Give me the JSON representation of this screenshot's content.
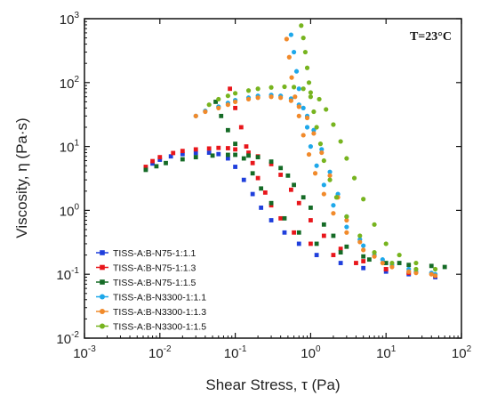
{
  "chart_data": {
    "type": "scatter",
    "title": "",
    "annotation": "T=23°C",
    "xlabel": "Shear Stress, τ (Pa)",
    "ylabel": "Viscosity, η (Pa·s)",
    "xscale": "log",
    "yscale": "log",
    "xlim": [
      0.001,
      100
    ],
    "ylim": [
      0.01,
      1000
    ],
    "x_ticks": [
      {
        "value": 0.001,
        "base": "10",
        "exp": "-3"
      },
      {
        "value": 0.01,
        "base": "10",
        "exp": "-2"
      },
      {
        "value": 0.1,
        "base": "10",
        "exp": "-1"
      },
      {
        "value": 1,
        "base": "10",
        "exp": "0"
      },
      {
        "value": 10,
        "base": "10",
        "exp": "1"
      },
      {
        "value": 100,
        "base": "10",
        "exp": "2"
      }
    ],
    "y_ticks": [
      {
        "value": 0.01,
        "base": "10",
        "exp": "-2"
      },
      {
        "value": 0.1,
        "base": "10",
        "exp": "-1"
      },
      {
        "value": 1,
        "base": "10",
        "exp": "0"
      },
      {
        "value": 10,
        "base": "10",
        "exp": "1"
      },
      {
        "value": 100,
        "base": "10",
        "exp": "2"
      },
      {
        "value": 1000,
        "base": "10",
        "exp": "3"
      }
    ],
    "grid": false,
    "legend_position": "bottom-left",
    "series": [
      {
        "name": "TISS-A:B-N75-1:1.1",
        "color": "#1f3fdc",
        "marker": "square",
        "points": [
          [
            0.0065,
            4.5
          ],
          [
            0.008,
            5.4
          ],
          [
            0.01,
            6.2
          ],
          [
            0.014,
            7.0
          ],
          [
            0.02,
            7.6
          ],
          [
            0.03,
            7.9
          ],
          [
            0.045,
            8.0
          ],
          [
            0.06,
            7.6
          ],
          [
            0.08,
            6.5
          ],
          [
            0.1,
            4.8
          ],
          [
            0.13,
            3.0
          ],
          [
            0.17,
            1.8
          ],
          [
            0.22,
            1.1
          ],
          [
            0.3,
            0.7
          ],
          [
            0.45,
            0.45
          ],
          [
            0.7,
            0.3
          ],
          [
            1.2,
            0.2
          ],
          [
            2.5,
            0.15
          ],
          [
            5,
            0.125
          ],
          [
            10,
            0.11
          ],
          [
            20,
            0.1
          ],
          [
            45,
            0.09
          ]
        ]
      },
      {
        "name": "TISS-A:B-N75-1:1.3",
        "color": "#e8161b",
        "marker": "square",
        "points": [
          [
            0.0065,
            4.8
          ],
          [
            0.008,
            5.9
          ],
          [
            0.01,
            6.8
          ],
          [
            0.015,
            7.9
          ],
          [
            0.02,
            8.5
          ],
          [
            0.03,
            9.0
          ],
          [
            0.045,
            9.3
          ],
          [
            0.06,
            9.5
          ],
          [
            0.08,
            9.4
          ],
          [
            0.1,
            9.0
          ],
          [
            0.15,
            8.0
          ],
          [
            0.2,
            7.0
          ],
          [
            0.3,
            5.3
          ],
          [
            0.4,
            3.6
          ],
          [
            0.55,
            2.1
          ],
          [
            0.7,
            1.3
          ],
          [
            1.0,
            0.7
          ],
          [
            1.5,
            0.4
          ],
          [
            2.5,
            0.25
          ],
          [
            5,
            0.16
          ],
          [
            10,
            0.12
          ],
          [
            20,
            0.105
          ],
          [
            45,
            0.095
          ],
          [
            0.085,
            80
          ],
          [
            0.1,
            40
          ],
          [
            0.12,
            20
          ],
          [
            0.14,
            10
          ],
          [
            0.17,
            5.5
          ],
          [
            0.2,
            3.2
          ],
          [
            0.25,
            1.9
          ],
          [
            0.3,
            1.2
          ],
          [
            0.4,
            0.75
          ],
          [
            0.6,
            0.45
          ],
          [
            1.0,
            0.3
          ],
          [
            2,
            0.2
          ],
          [
            4,
            0.15
          ],
          [
            10,
            0.12
          ]
        ]
      },
      {
        "name": "TISS-A:B-N75-1:1.5",
        "color": "#156b26",
        "marker": "square",
        "points": [
          [
            0.0065,
            4.3
          ],
          [
            0.009,
            4.9
          ],
          [
            0.012,
            5.5
          ],
          [
            0.02,
            6.3
          ],
          [
            0.03,
            6.8
          ],
          [
            0.05,
            7.2
          ],
          [
            0.08,
            7.4
          ],
          [
            0.1,
            7.4
          ],
          [
            0.15,
            7.2
          ],
          [
            0.2,
            6.8
          ],
          [
            0.3,
            5.8
          ],
          [
            0.4,
            4.6
          ],
          [
            0.5,
            3.5
          ],
          [
            0.6,
            2.5
          ],
          [
            0.8,
            1.6
          ],
          [
            1.0,
            1.1
          ],
          [
            1.5,
            0.6
          ],
          [
            2,
            0.4
          ],
          [
            3,
            0.27
          ],
          [
            5,
            0.19
          ],
          [
            10,
            0.15
          ],
          [
            20,
            0.14
          ],
          [
            60,
            0.13
          ],
          [
            0.055,
            50
          ],
          [
            0.065,
            30
          ],
          [
            0.08,
            18
          ],
          [
            0.1,
            11
          ],
          [
            0.13,
            6.5
          ],
          [
            0.17,
            3.8
          ],
          [
            0.22,
            2.2
          ],
          [
            0.3,
            1.3
          ],
          [
            0.45,
            0.75
          ],
          [
            0.7,
            0.45
          ],
          [
            1.2,
            0.3
          ],
          [
            2.5,
            0.22
          ],
          [
            6,
            0.17
          ],
          [
            15,
            0.15
          ],
          [
            40,
            0.135
          ]
        ]
      },
      {
        "name": "TISS-A:B-N3300-1:1.1",
        "color": "#1ea8ea",
        "marker": "circle",
        "points": [
          [
            0.03,
            30
          ],
          [
            0.04,
            36
          ],
          [
            0.06,
            42
          ],
          [
            0.08,
            48
          ],
          [
            0.1,
            53
          ],
          [
            0.15,
            58
          ],
          [
            0.2,
            62
          ],
          [
            0.3,
            64
          ],
          [
            0.4,
            62
          ],
          [
            0.55,
            56
          ],
          [
            0.7,
            45
          ],
          [
            0.9,
            30
          ],
          [
            1.1,
            18
          ],
          [
            1.4,
            9
          ],
          [
            1.8,
            4.0
          ],
          [
            2.3,
            1.8
          ],
          [
            3,
            0.8
          ],
          [
            4.5,
            0.35
          ],
          [
            7,
            0.2
          ],
          [
            12,
            0.14
          ],
          [
            25,
            0.11
          ],
          [
            45,
            0.1
          ],
          [
            0.55,
            560
          ],
          [
            0.6,
            300
          ],
          [
            0.65,
            150
          ],
          [
            0.7,
            80
          ],
          [
            0.8,
            40
          ],
          [
            0.9,
            20
          ],
          [
            1.0,
            10
          ],
          [
            1.2,
            5
          ],
          [
            1.5,
            2.5
          ],
          [
            2,
            1.2
          ],
          [
            3,
            0.55
          ],
          [
            5,
            0.28
          ],
          [
            9,
            0.17
          ],
          [
            20,
            0.12
          ],
          [
            40,
            0.105
          ]
        ]
      },
      {
        "name": "TISS-A:B-N3300-1:1.3",
        "color": "#f18a2b",
        "marker": "circle",
        "points": [
          [
            0.03,
            30
          ],
          [
            0.04,
            35
          ],
          [
            0.06,
            40
          ],
          [
            0.08,
            45
          ],
          [
            0.1,
            50
          ],
          [
            0.15,
            55
          ],
          [
            0.2,
            58
          ],
          [
            0.3,
            60
          ],
          [
            0.4,
            58
          ],
          [
            0.55,
            52
          ],
          [
            0.7,
            42
          ],
          [
            0.9,
            28
          ],
          [
            1.1,
            16
          ],
          [
            1.4,
            8
          ],
          [
            1.8,
            3.5
          ],
          [
            2.3,
            1.6
          ],
          [
            3,
            0.7
          ],
          [
            4.5,
            0.32
          ],
          [
            7,
            0.19
          ],
          [
            12,
            0.13
          ],
          [
            25,
            0.105
          ],
          [
            45,
            0.095
          ],
          [
            0.48,
            480
          ],
          [
            0.52,
            250
          ],
          [
            0.56,
            120
          ],
          [
            0.62,
            60
          ],
          [
            0.7,
            30
          ],
          [
            0.8,
            15
          ],
          [
            0.95,
            7.5
          ],
          [
            1.15,
            3.8
          ],
          [
            1.5,
            1.8
          ],
          [
            2,
            0.9
          ],
          [
            3,
            0.45
          ],
          [
            5,
            0.24
          ],
          [
            9,
            0.15
          ],
          [
            20,
            0.11
          ],
          [
            40,
            0.1
          ]
        ]
      },
      {
        "name": "TISS-A:B-N3300-1:1.5",
        "color": "#77b41f",
        "marker": "circle",
        "points": [
          [
            0.045,
            45
          ],
          [
            0.06,
            55
          ],
          [
            0.08,
            62
          ],
          [
            0.1,
            68
          ],
          [
            0.15,
            75
          ],
          [
            0.2,
            80
          ],
          [
            0.3,
            84
          ],
          [
            0.45,
            86
          ],
          [
            0.6,
            85
          ],
          [
            0.8,
            80
          ],
          [
            1.0,
            70
          ],
          [
            1.3,
            55
          ],
          [
            1.6,
            38
          ],
          [
            2,
            22
          ],
          [
            2.5,
            12
          ],
          [
            3,
            6.5
          ],
          [
            3.8,
            3.2
          ],
          [
            5,
            1.5
          ],
          [
            7,
            0.6
          ],
          [
            10,
            0.3
          ],
          [
            15,
            0.2
          ],
          [
            25,
            0.15
          ],
          [
            45,
            0.12
          ],
          [
            0.75,
            780
          ],
          [
            0.8,
            500
          ],
          [
            0.85,
            300
          ],
          [
            0.9,
            170
          ],
          [
            0.95,
            100
          ],
          [
            1.0,
            60
          ],
          [
            1.1,
            35
          ],
          [
            1.2,
            20
          ],
          [
            1.35,
            11
          ],
          [
            1.5,
            6
          ],
          [
            1.8,
            3
          ],
          [
            2.2,
            1.6
          ],
          [
            3,
            0.8
          ],
          [
            4.5,
            0.4
          ],
          [
            7,
            0.22
          ],
          [
            12,
            0.15
          ],
          [
            25,
            0.12
          ]
        ]
      }
    ]
  }
}
